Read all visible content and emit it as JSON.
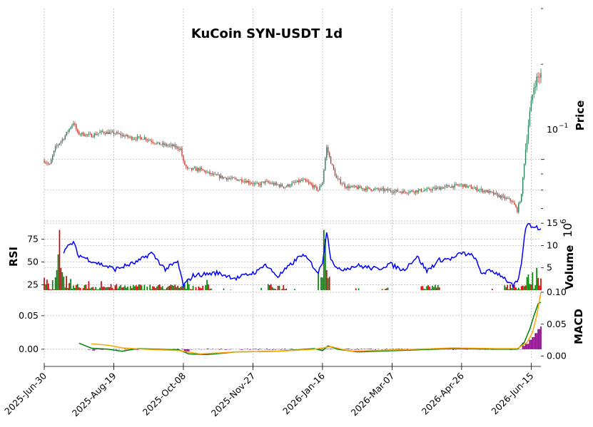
{
  "chart_data": {
    "type": "candlestick",
    "title": "KuCoin SYN-USDT 1d",
    "x_tick_labels": [
      "2025-Jun-30",
      "2025-Aug-19",
      "2025-Oct-08",
      "2025-Nov-27",
      "2026-Jan-16",
      "2026-Mar-07",
      "2026-Apr-26",
      "2026-Jun-15"
    ],
    "x_range": [
      "2025-06-30",
      "2026-06-22"
    ],
    "grid": true,
    "colors": {
      "up": "#2e7d5b",
      "down": "#c0392b",
      "vol_up": "#008000",
      "vol_down": "#cc0000",
      "rsi": "#0000ff",
      "macd": "#008000",
      "signal": "#ffa500",
      "hist": "#800080",
      "grid": "#b0b0b0"
    },
    "panels": {
      "price": {
        "ylabel": "Price",
        "scale": "log",
        "ytick_label": "10^-1",
        "ylim": [
          0.068,
          0.3
        ],
        "keypoints": [
          [
            "2025-06-30",
            0.099
          ],
          [
            "2025-07-04",
            0.096
          ],
          [
            "2025-07-08",
            0.109
          ],
          [
            "2025-07-14",
            0.117
          ],
          [
            "2025-07-21",
            0.131
          ],
          [
            "2025-07-24",
            0.121
          ],
          [
            "2025-08-03",
            0.119
          ],
          [
            "2025-08-10",
            0.122
          ],
          [
            "2025-08-20",
            0.121
          ],
          [
            "2025-09-01",
            0.117
          ],
          [
            "2025-09-10",
            0.117
          ],
          [
            "2025-09-20",
            0.112
          ],
          [
            "2025-10-01",
            0.11
          ],
          [
            "2025-10-06",
            0.108
          ],
          [
            "2025-10-08",
            0.098
          ],
          [
            "2025-10-11",
            0.093
          ],
          [
            "2025-10-20",
            0.093
          ],
          [
            "2025-10-30",
            0.089
          ],
          [
            "2025-11-10",
            0.087
          ],
          [
            "2025-11-20",
            0.086
          ],
          [
            "2025-12-01",
            0.083
          ],
          [
            "2025-12-05",
            0.085
          ],
          [
            "2025-12-10",
            0.084
          ],
          [
            "2025-12-20",
            0.082
          ],
          [
            "2025-12-26",
            0.084
          ],
          [
            "2026-01-02",
            0.086
          ],
          [
            "2026-01-08",
            0.083
          ],
          [
            "2026-01-13",
            0.08
          ],
          [
            "2026-01-16",
            0.085
          ],
          [
            "2026-01-19",
            0.109
          ],
          [
            "2026-01-22",
            0.098
          ],
          [
            "2026-01-26",
            0.087
          ],
          [
            "2026-02-02",
            0.082
          ],
          [
            "2026-02-15",
            0.081
          ],
          [
            "2026-03-01",
            0.08
          ],
          [
            "2026-03-15",
            0.079
          ],
          [
            "2026-04-01",
            0.08
          ],
          [
            "2026-04-15",
            0.082
          ],
          [
            "2026-04-26",
            0.083
          ],
          [
            "2026-05-05",
            0.081
          ],
          [
            "2026-05-15",
            0.079
          ],
          [
            "2026-05-25",
            0.076
          ],
          [
            "2026-06-01",
            0.074
          ],
          [
            "2026-06-05",
            0.069
          ],
          [
            "2026-06-08",
            0.077
          ],
          [
            "2026-06-11",
            0.108
          ],
          [
            "2026-06-14",
            0.14
          ],
          [
            "2026-06-17",
            0.17
          ],
          [
            "2026-06-19",
            0.18
          ],
          [
            "2026-06-22",
            0.185
          ]
        ]
      },
      "volume": {
        "ylabel": "Volume",
        "exponent_label": "10^6",
        "ylim": [
          0,
          15.5
        ],
        "yticks": [
          5,
          10,
          15
        ],
        "spikes": [
          [
            "2025-07-09",
            4.5,
            "up"
          ],
          [
            "2025-07-10",
            8.0,
            "up"
          ],
          [
            "2025-07-11",
            13.5,
            "down"
          ],
          [
            "2025-07-12",
            5.0,
            "down"
          ],
          [
            "2025-07-13",
            4.0,
            "up"
          ],
          [
            "2025-07-19",
            2.5,
            "up"
          ],
          [
            "2025-08-01",
            2.0,
            "down"
          ],
          [
            "2025-08-10",
            2.0,
            "down"
          ],
          [
            "2025-10-11",
            2.3,
            "up"
          ],
          [
            "2025-10-25",
            2.3,
            "up"
          ],
          [
            "2026-01-13",
            4.0,
            "up"
          ],
          [
            "2026-01-17",
            13.5,
            "up"
          ],
          [
            "2026-01-18",
            11.5,
            "up"
          ],
          [
            "2026-01-19",
            4.5,
            "down"
          ],
          [
            "2026-01-21",
            3.0,
            "down"
          ],
          [
            "2026-06-13",
            3.5,
            "up"
          ],
          [
            "2026-06-16",
            4.0,
            "up"
          ],
          [
            "2026-06-19",
            5.0,
            "up"
          ]
        ]
      },
      "rsi": {
        "ylabel": "RSI",
        "ylim": [
          19,
          95
        ],
        "yticks": [
          25,
          50,
          75
        ],
        "keypoints": [
          [
            "2025-07-14",
            62
          ],
          [
            "2025-07-21",
            72
          ],
          [
            "2025-07-24",
            58
          ],
          [
            "2025-08-05",
            50
          ],
          [
            "2025-08-20",
            42
          ],
          [
            "2025-09-05",
            50
          ],
          [
            "2025-09-15",
            60
          ],
          [
            "2025-09-25",
            42
          ],
          [
            "2025-10-04",
            50
          ],
          [
            "2025-10-08",
            24
          ],
          [
            "2025-10-15",
            35
          ],
          [
            "2025-11-01",
            38
          ],
          [
            "2025-11-15",
            32
          ],
          [
            "2025-12-01",
            40
          ],
          [
            "2025-12-05",
            48
          ],
          [
            "2025-12-15",
            34
          ],
          [
            "2025-12-25",
            48
          ],
          [
            "2026-01-01",
            58
          ],
          [
            "2026-01-06",
            52
          ],
          [
            "2026-01-13",
            38
          ],
          [
            "2026-01-16",
            50
          ],
          [
            "2026-01-19",
            84
          ],
          [
            "2026-01-22",
            55
          ],
          [
            "2026-01-27",
            41
          ],
          [
            "2026-02-10",
            46
          ],
          [
            "2026-02-25",
            42
          ],
          [
            "2026-03-05",
            48
          ],
          [
            "2026-03-15",
            41
          ],
          [
            "2026-03-25",
            56
          ],
          [
            "2026-04-01",
            40
          ],
          [
            "2026-04-10",
            52
          ],
          [
            "2026-04-20",
            54
          ],
          [
            "2026-04-26",
            60
          ],
          [
            "2026-05-05",
            56
          ],
          [
            "2026-05-10",
            38
          ],
          [
            "2026-05-18",
            40
          ],
          [
            "2026-05-25",
            35
          ],
          [
            "2026-06-02",
            23
          ],
          [
            "2026-06-06",
            30
          ],
          [
            "2026-06-09",
            60
          ],
          [
            "2026-06-11",
            88
          ],
          [
            "2026-06-14",
            92
          ],
          [
            "2026-06-16",
            88
          ],
          [
            "2026-06-18",
            90
          ],
          [
            "2026-06-20",
            86
          ],
          [
            "2026-06-22",
            88
          ]
        ]
      },
      "macd": {
        "ylabel": "MACD",
        "ylim_left": [
          -0.015,
          0.085
        ],
        "yticks_left": [
          0.0,
          0.05
        ],
        "ylim_right": [
          -0.005,
          0.1
        ],
        "yticks_right": [
          0.0,
          0.05,
          0.1
        ],
        "macd_keypoints": [
          [
            "2025-07-25",
            0.009
          ],
          [
            "2025-08-03",
            0.0015
          ],
          [
            "2025-08-15",
            0.0
          ],
          [
            "2025-08-25",
            -0.003
          ],
          [
            "2025-09-05",
            0.001
          ],
          [
            "2025-09-20",
            0.0
          ],
          [
            "2025-10-05",
            -0.001
          ],
          [
            "2025-10-12",
            -0.007
          ],
          [
            "2025-10-25",
            -0.008
          ],
          [
            "2025-11-15",
            -0.004
          ],
          [
            "2025-12-15",
            -0.003
          ],
          [
            "2026-01-10",
            0.001
          ],
          [
            "2026-01-16",
            -0.002
          ],
          [
            "2026-01-20",
            0.005
          ],
          [
            "2026-01-27",
            0.0
          ],
          [
            "2026-02-10",
            -0.004
          ],
          [
            "2026-03-10",
            -0.002
          ],
          [
            "2026-04-20",
            0.001
          ],
          [
            "2026-05-20",
            0.0
          ],
          [
            "2026-06-05",
            0.0
          ],
          [
            "2026-06-10",
            0.01
          ],
          [
            "2026-06-14",
            0.03
          ],
          [
            "2026-06-17",
            0.05
          ],
          [
            "2026-06-20",
            0.068
          ],
          [
            "2026-06-22",
            0.07
          ]
        ],
        "signal_keypoints": [
          [
            "2025-08-03",
            0.008
          ],
          [
            "2025-08-15",
            0.006
          ],
          [
            "2025-08-25",
            0.002
          ],
          [
            "2025-09-10",
            0.0
          ],
          [
            "2025-10-05",
            -0.002
          ],
          [
            "2025-10-20",
            -0.007
          ],
          [
            "2025-11-15",
            -0.004
          ],
          [
            "2025-12-15",
            -0.003
          ],
          [
            "2026-01-10",
            0.0
          ],
          [
            "2026-01-22",
            0.004
          ],
          [
            "2026-02-05",
            -0.003
          ],
          [
            "2026-03-10",
            -0.001
          ],
          [
            "2026-04-20",
            0.002
          ],
          [
            "2026-05-20",
            0.001
          ],
          [
            "2026-06-05",
            0.001
          ],
          [
            "2026-06-12",
            0.01
          ],
          [
            "2026-06-16",
            0.025
          ],
          [
            "2026-06-19",
            0.05
          ],
          [
            "2026-06-22",
            0.085
          ]
        ],
        "hist_spikes": [
          [
            "2026-06-12",
            0.008
          ],
          [
            "2026-06-14",
            0.014
          ],
          [
            "2026-06-16",
            0.018
          ],
          [
            "2026-06-18",
            0.024
          ],
          [
            "2026-06-20",
            0.03
          ],
          [
            "2026-06-22",
            0.034
          ]
        ]
      }
    }
  }
}
